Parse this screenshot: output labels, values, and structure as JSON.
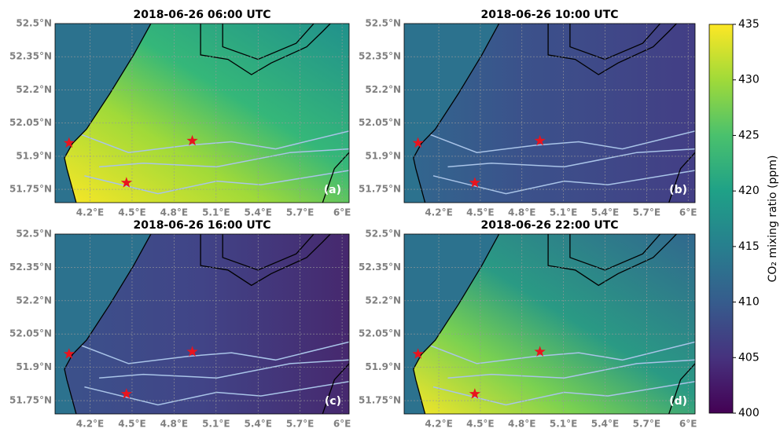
{
  "figure": {
    "panels": [
      {
        "title": "2018-06-26 06:00 UTC",
        "label": "(a)"
      },
      {
        "title": "2018-06-26 10:00 UTC",
        "label": "(b)"
      },
      {
        "title": "2018-06-26 16:00 UTC",
        "label": "(c)"
      },
      {
        "title": "2018-06-26 22:00 UTC",
        "label": "(d)"
      }
    ],
    "xlim": [
      3.95,
      6.05
    ],
    "ylim": [
      51.69,
      52.5
    ],
    "xticks": [
      {
        "value": 4.2,
        "label": "4.2°E"
      },
      {
        "value": 4.5,
        "label": "4.5°E"
      },
      {
        "value": 4.8,
        "label": "4.8°E"
      },
      {
        "value": 5.1,
        "label": "5.1°E"
      },
      {
        "value": 5.4,
        "label": "5.4°E"
      },
      {
        "value": 5.7,
        "label": "5.7°E"
      },
      {
        "value": 6,
        "label": "6°E"
      }
    ],
    "yticks": [
      {
        "value": 51.75,
        "label": "51.75°N"
      },
      {
        "value": 51.9,
        "label": "51.9°N"
      },
      {
        "value": 52.05,
        "label": "52.05°N"
      },
      {
        "value": 52.2,
        "label": "52.2°N"
      },
      {
        "value": 52.35,
        "label": "52.35°N"
      },
      {
        "value": 52.5,
        "label": "52.5°N"
      }
    ],
    "sites": [
      {
        "lon": 4.05,
        "lat": 51.96
      },
      {
        "lon": 4.46,
        "lat": 51.78
      },
      {
        "lon": 4.93,
        "lat": 51.97
      }
    ],
    "colorbar": {
      "label": "CO₂ mixing ratio (ppm)",
      "lim": [
        400,
        435
      ],
      "ticks": [
        400,
        405,
        410,
        415,
        420,
        425,
        430,
        435
      ],
      "colors": [
        "#440154",
        "#46327e",
        "#365c8d",
        "#277f8e",
        "#1fa187",
        "#4ac16d",
        "#a0da39",
        "#fde725"
      ]
    }
  }
}
